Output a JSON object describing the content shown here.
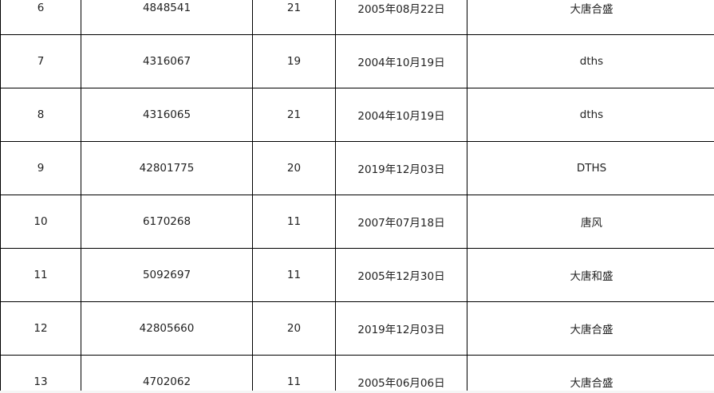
{
  "rows": [
    {
      "no": "6",
      "id": "4848541",
      "count": "21",
      "date": "2005年08月22日",
      "name": "大唐合盛"
    },
    {
      "no": "7",
      "id": "4316067",
      "count": "19",
      "date": "2004年10月19日",
      "name": "dths"
    },
    {
      "no": "8",
      "id": "4316065",
      "count": "21",
      "date": "2004年10月19日",
      "name": "dths"
    },
    {
      "no": "9",
      "id": "42801775",
      "count": "20",
      "date": "2019年12月03日",
      "name": "DTHS"
    },
    {
      "no": "10",
      "id": "6170268",
      "count": "11",
      "date": "2007年07月18日",
      "name": "唐风"
    },
    {
      "no": "11",
      "id": "5092697",
      "count": "11",
      "date": "2005年12月30日",
      "name": "大唐和盛"
    },
    {
      "no": "12",
      "id": "42805660",
      "count": "20",
      "date": "2019年12月03日",
      "name": "大唐合盛"
    },
    {
      "no": "13",
      "id": "4702062",
      "count": "11",
      "date": "2005年06月06日",
      "name": "大唐合盛"
    }
  ]
}
